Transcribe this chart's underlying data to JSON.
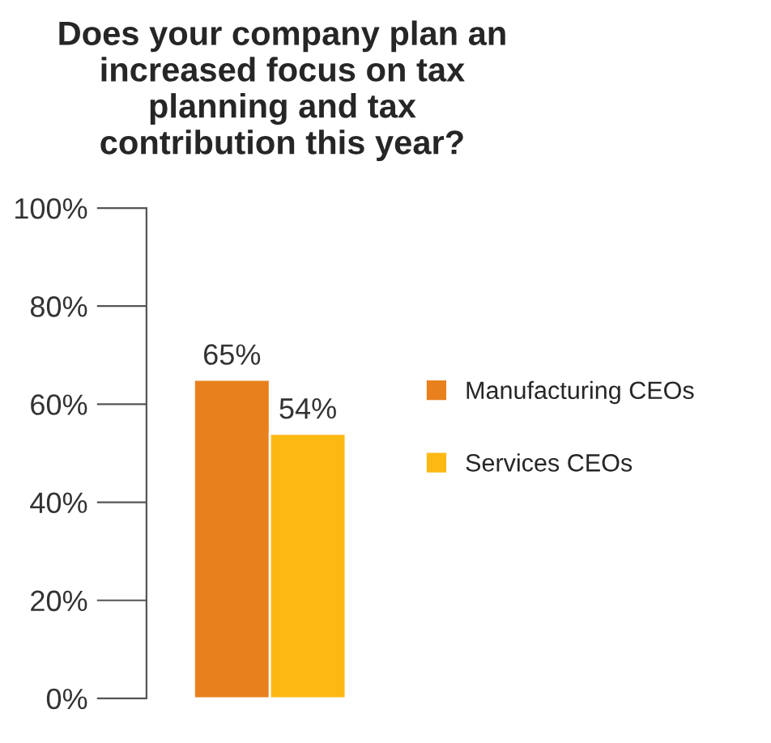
{
  "chart_data": {
    "type": "bar",
    "title": "Does your company plan an\nincreased focus on tax\nplanning and tax\ncontribution this year?",
    "categories": [
      null
    ],
    "series": [
      {
        "name": "Manufacturing CEOs",
        "color": "#e8801e",
        "values": [
          65
        ],
        "value_labels": [
          "65%"
        ]
      },
      {
        "name": "Services CEOs",
        "color": "#fdb913",
        "values": [
          54
        ],
        "value_labels": [
          "54%"
        ]
      }
    ],
    "ylim": [
      0,
      100
    ],
    "yticks": [
      {
        "value": 0,
        "label": "0%"
      },
      {
        "value": 20,
        "label": "20%"
      },
      {
        "value": 40,
        "label": "40%"
      },
      {
        "value": 60,
        "label": "60%"
      },
      {
        "value": 80,
        "label": "80%"
      },
      {
        "value": 100,
        "label": "100%"
      }
    ],
    "grid": false,
    "legend": "right"
  }
}
